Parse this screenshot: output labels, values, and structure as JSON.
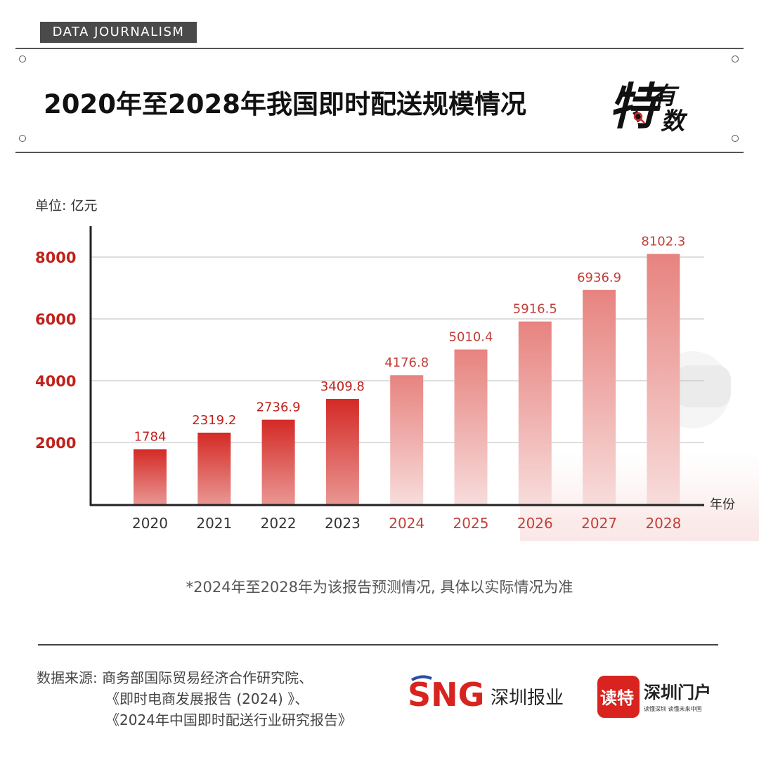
{
  "header": {
    "tag": "DATA JOURNALISM",
    "title": "2020年至2028年我国即时配送规模情况",
    "brand_big": "特",
    "brand_small_top": "有",
    "brand_small_bottom": "数"
  },
  "unit_label": "单位: 亿元",
  "x_unit_label": "年份",
  "footnote": "*2024年至2028年为该报告预测情况, 具体以实际情况为准",
  "source": {
    "line1": "数据来源: 商务部国际贸易经济合作研究院、",
    "line2": "《即时电商发展报告 (2024) 》、",
    "line3": "《2024年中国即时配送行业研究报告》"
  },
  "logos": {
    "sng_mark": "SNG",
    "sng_text": "深圳报业",
    "dute_mark": "读特",
    "dute_text": "深圳门户",
    "dute_sub": "读懂深圳 读懂未来中国"
  },
  "colors": {
    "actual": "#d42a25",
    "forecast": "#e88a86",
    "axis_ticks": "#c0211b",
    "forecast_labels": "#c0403a"
  },
  "chart_data": {
    "type": "bar",
    "categories": [
      "2020",
      "2021",
      "2022",
      "2023",
      "2024",
      "2025",
      "2026",
      "2027",
      "2028"
    ],
    "values": [
      1784,
      2319.2,
      2736.9,
      3409.8,
      4176.8,
      5010.4,
      5916.5,
      6936.9,
      8102.3
    ],
    "value_labels": [
      "1784",
      "2319.2",
      "2736.9",
      "3409.8",
      "4176.8",
      "5010.4",
      "5916.5",
      "6936.9",
      "8102.3"
    ],
    "forecast_from": "2024",
    "yticks": [
      2000,
      4000,
      6000,
      8000
    ],
    "ylim": [
      0,
      9000
    ],
    "ylabel": "单位: 亿元",
    "xlabel": "年份",
    "grid": true
  }
}
